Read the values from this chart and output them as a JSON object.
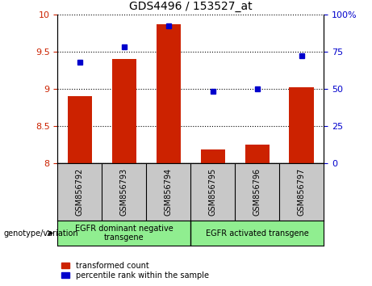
{
  "title": "GDS4496 / 153527_at",
  "samples": [
    "GSM856792",
    "GSM856793",
    "GSM856794",
    "GSM856795",
    "GSM856796",
    "GSM856797"
  ],
  "bar_values": [
    8.9,
    9.4,
    9.87,
    8.18,
    8.25,
    9.02
  ],
  "percentile_values": [
    68,
    78,
    92,
    48,
    50,
    72
  ],
  "ylim_left": [
    8,
    10
  ],
  "ylim_right": [
    0,
    100
  ],
  "yticks_left": [
    8,
    8.5,
    9,
    9.5,
    10
  ],
  "yticks_right": [
    0,
    25,
    50,
    75,
    100
  ],
  "bar_color": "#cc2200",
  "dot_color": "#0000cc",
  "bar_bottom": 8,
  "group1_label": "EGFR dominant negative\ntransgene",
  "group2_label": "EGFR activated transgene",
  "genotype_label": "genotype/variation",
  "legend1": "transformed count",
  "legend2": "percentile rank within the sample",
  "group1_indices": [
    0,
    1,
    2
  ],
  "group2_indices": [
    3,
    4,
    5
  ],
  "xlabel_area_color": "#c8c8c8",
  "group_label_color": "#90ee90"
}
